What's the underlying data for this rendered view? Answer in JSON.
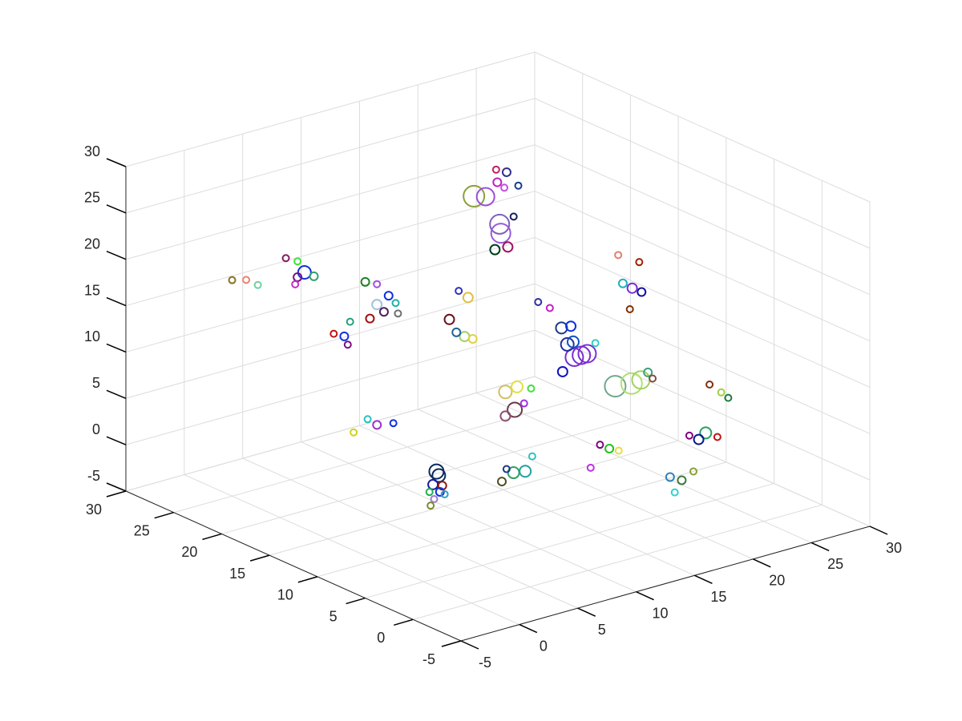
{
  "chart_data": {
    "type": "scatter3d",
    "xlim": [
      -5,
      30
    ],
    "ylim": [
      -5,
      30
    ],
    "zlim": [
      -5,
      30
    ],
    "xticks": [
      -5,
      0,
      5,
      10,
      15,
      20,
      25,
      30
    ],
    "yticks": [
      -5,
      0,
      5,
      10,
      15,
      20,
      25,
      30
    ],
    "zticks": [
      -5,
      0,
      5,
      10,
      15,
      20,
      25,
      30
    ],
    "grid": true,
    "x": [
      1.1,
      1.3,
      0.8,
      1.6,
      0.5,
      1.4,
      0.9,
      1.8,
      0.6,
      17.0,
      17.6,
      18.1,
      16.4,
      16.9,
      16.0,
      18.8,
      16.4,
      17.8,
      18.6,
      19.2,
      19.6,
      16.6,
      17.6,
      18.6,
      19.4,
      19.2,
      20.4,
      18.5,
      18.8,
      18.9,
      18.4,
      19.5,
      20.0,
      2.1,
      1.5,
      2.9,
      1.3,
      0.5,
      1.5,
      0,
      1.2,
      2.2,
      4.2,
      5.2,
      3.6,
      4.8,
      5.8,
      3.2,
      4.2,
      6.0,
      5.5,
      4.6,
      6.0,
      5.8,
      11.7,
      11.0,
      12.4,
      10.4,
      12.0,
      11.2,
      7.0,
      8.0,
      7.8,
      7.0,
      9.2,
      8.6,
      3.6,
      4.6,
      2.6,
      3.0,
      5.2,
      11.8,
      11.0,
      12.6,
      10.2,
      18,
      17,
      17.4,
      19,
      28,
      27.4,
      29,
      26.6,
      29,
      28,
      29.6,
      28,
      27.2,
      26.4,
      27,
      26,
      27.8,
      20,
      20.8,
      19,
      18,
      12.4,
      11.6,
      10.4,
      13.8
    ],
    "y": [
      5,
      5,
      5,
      5,
      5,
      5,
      5,
      5,
      5,
      10,
      10,
      10,
      10,
      10,
      10,
      10,
      5,
      5,
      5,
      5,
      5,
      20,
      20,
      20,
      20,
      20,
      20,
      20,
      20,
      20,
      20,
      20,
      20,
      20,
      20,
      20,
      20,
      20,
      20,
      25,
      25,
      25,
      15,
      15,
      15,
      15,
      15,
      15,
      15,
      15,
      20,
      20,
      20,
      20,
      15,
      15,
      15,
      15,
      15,
      15,
      5,
      5,
      5,
      5,
      5,
      5,
      0,
      0,
      0,
      0,
      0,
      0,
      0,
      0,
      0,
      0,
      0,
      0,
      0,
      9.7,
      9.7,
      9.7,
      9.7,
      9.3,
      9.3,
      9.3,
      16.4,
      16.4,
      16.4,
      16.4,
      16.4,
      16.4,
      15,
      15,
      15,
      15,
      25,
      25,
      25,
      25
    ],
    "z": [
      6.5,
      6.0,
      5.2,
      4.8,
      4.5,
      4.2,
      3.6,
      3.8,
      3.0,
      10.9,
      10.9,
      10.9,
      12.5,
      12.6,
      9.7,
      11.8,
      10.3,
      10.1,
      10.2,
      10.8,
      10.0,
      23.8,
      23.4,
      24.6,
      25.4,
      23.8,
      23.6,
      26.0,
      20.0,
      19.0,
      17.4,
      17.3,
      20.4,
      20.7,
      20.4,
      20.0,
      19.7,
      22.8,
      22.1,
      18.3,
      17.9,
      17.0,
      18.8,
      19.4,
      17.5,
      17.8,
      18.4,
      21.6,
      21.0,
      17.2,
      12.6,
      13.2,
      14.0,
      11.6,
      12.7,
      13.4,
      12.2,
      15.0,
      16.8,
      17.8,
      13.0,
      13.2,
      10.8,
      10.4,
      12.6,
      11.2,
      7.8,
      7.6,
      7.2,
      8.4,
      9.0,
      7.5,
      8.2,
      7.0,
      6.0,
      1.9,
      2.6,
      0.8,
      2.5,
      -1,
      -1.5,
      -1.8,
      -0.8,
      3.2,
      4.4,
      2.4,
      11.1,
      11.8,
      12.6,
      9.6,
      15.8,
      14.4,
      10.7,
      10.6,
      13.2,
      14.2,
      -1.7,
      -0.8,
      -1.8,
      -2.0
    ],
    "sizes": [
      9,
      8,
      6,
      5,
      4,
      5,
      4,
      4,
      4,
      11,
      11,
      11,
      8,
      7,
      6,
      4,
      13,
      13,
      11,
      5,
      4,
      13,
      11,
      5,
      5,
      4,
      4,
      4,
      12,
      12,
      6,
      6,
      4,
      8,
      5,
      5,
      4,
      4,
      4,
      4,
      4,
      4,
      6,
      5,
      5,
      5,
      4,
      5,
      4,
      4,
      5,
      4,
      4,
      4,
      6,
      5,
      5,
      6,
      6,
      4,
      8,
      7,
      9,
      6,
      4,
      4,
      7,
      7,
      5,
      4,
      4,
      5,
      4,
      4,
      4,
      5,
      5,
      4,
      4,
      7,
      6,
      4,
      4,
      4,
      4,
      4,
      5,
      6,
      5,
      4,
      4,
      4,
      7,
      6,
      4,
      4,
      5,
      4,
      4,
      4
    ],
    "colors": [
      "#0a2a5e",
      "#0a2a5e",
      "#1a1aa0",
      "#8b1a1a",
      "#20b050",
      "#1030e0",
      "#9a7fd0",
      "#30a0c0",
      "#7a8a2a",
      "#7a30d0",
      "#7a30d0",
      "#7a30d0",
      "#2030a0",
      "#1050c0",
      "#1010c0",
      "#30d0c0",
      "#70a888",
      "#b0e070",
      "#a0d060",
      "#40a080",
      "#80503a",
      "#8aa038",
      "#9d4ed8",
      "#c020c0",
      "#303090",
      "#c050e0",
      "#1a3a8a",
      "#c02060",
      "#8060c0",
      "#9a5ad8",
      "#004020",
      "#a01060",
      "#102060",
      "#1030e0",
      "#7a1080",
      "#30a070",
      "#c030c0",
      "#8a1a60",
      "#40e040",
      "#8a7020",
      "#f08070",
      "#70d0a0",
      "#a0c0e0",
      "#1030e0",
      "#a01010",
      "#4a2060",
      "#20b0a0",
      "#208020",
      "#a050e0",
      "#707070",
      "#1030e0",
      "#c01010",
      "#20a080",
      "#7a1080",
      "#a0d070",
      "#2060a0",
      "#e0d040",
      "#6a1020",
      "#e0c040",
      "#3030c0",
      "#d0c060",
      "#e0e040",
      "#6a3a4a",
      "#8a5070",
      "#40e040",
      "#a030e0",
      "#30a060",
      "#20a0a0",
      "#505020",
      "#1a3a8a",
      "#30c0c0",
      "#20c020",
      "#800080",
      "#e0e040",
      "#c030e0",
      "#3a7a3a",
      "#3080c0",
      "#30d0d0",
      "#8aa038",
      "#2aa060",
      "#0a1a8a",
      "#c01010",
      "#800080",
      "#a0d040",
      "#803010",
      "#1a7a3a",
      "#1010a0",
      "#7a30d0",
      "#20b0c0",
      "#803000",
      "#e08070",
      "#a02000",
      "#1a3a8a",
      "#1030e0",
      "#c020c0",
      "#3030a0",
      "#9a30d0",
      "#30c0c0",
      "#d0d020",
      "#1030e0"
    ]
  }
}
